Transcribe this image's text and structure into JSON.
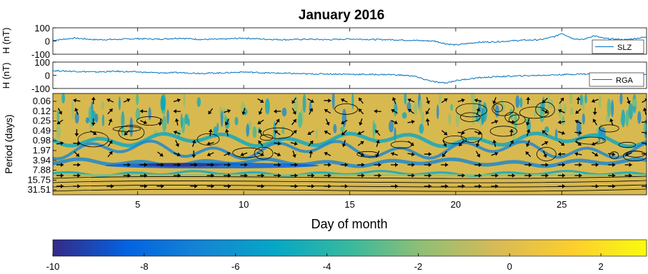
{
  "chart_data": [
    {
      "type": "line",
      "title": "January 2016",
      "ylabel": "H (nT)",
      "ylim": [
        -100,
        100
      ],
      "yticks": [
        100,
        0,
        -100
      ],
      "xlim": [
        1,
        29
      ],
      "grid": false,
      "legend_position": "right",
      "series": [
        {
          "name": "SLZ",
          "x": [
            1,
            2,
            3,
            4,
            5,
            6,
            7,
            8,
            9,
            10,
            11,
            12,
            13,
            14,
            15,
            16,
            17,
            18,
            19,
            19.5,
            20,
            21,
            22,
            23,
            24,
            24.7,
            25,
            25.5,
            26,
            26.5,
            27,
            28,
            29
          ],
          "values": [
            5,
            22,
            10,
            12,
            18,
            14,
            22,
            12,
            14,
            22,
            14,
            10,
            14,
            10,
            16,
            12,
            10,
            5,
            0,
            -20,
            -30,
            -10,
            -5,
            5,
            10,
            35,
            60,
            20,
            10,
            40,
            20,
            10,
            30
          ]
        }
      ],
      "color": "#0072BD"
    },
    {
      "type": "line",
      "ylabel": "H (nT)",
      "ylim": [
        -100,
        100
      ],
      "yticks": [
        100,
        0,
        -100
      ],
      "xlim": [
        1,
        29
      ],
      "grid": false,
      "legend_position": "right",
      "series": [
        {
          "name": "RGA",
          "x": [
            1,
            2,
            3,
            4,
            5,
            6,
            7,
            8,
            9,
            10,
            11,
            12,
            13,
            14,
            15,
            16,
            17,
            18,
            18.5,
            19,
            19.5,
            20,
            21,
            22,
            23,
            24,
            25,
            26,
            27,
            28,
            29
          ],
          "values": [
            35,
            30,
            25,
            30,
            25,
            18,
            20,
            15,
            18,
            25,
            18,
            15,
            10,
            10,
            8,
            6,
            5,
            -5,
            -30,
            -50,
            -60,
            -40,
            -20,
            -10,
            -5,
            0,
            5,
            10,
            5,
            5,
            5
          ]
        }
      ],
      "color": "#0072BD"
    },
    {
      "type": "heatmap",
      "xlabel": "Day of month",
      "ylabel": "Period (days)",
      "xlim": [
        1,
        29
      ],
      "xticks": [
        5,
        10,
        15,
        20,
        25
      ],
      "yticks": [
        "0.06",
        "0.12",
        "0.25",
        "0.49",
        "0.98",
        "1.97",
        "3.94",
        "7.88",
        "15.75",
        "31.51"
      ],
      "colorbar_ticks": [
        -10,
        -8,
        -6,
        -4,
        -2,
        0,
        2
      ],
      "colorbar_range": [
        -10,
        3
      ],
      "colormap": "parula"
    }
  ],
  "palette": {
    "parula": [
      "#352a87",
      "#0363e1",
      "#1485d4",
      "#06a7c6",
      "#38b99e",
      "#92bf73",
      "#d9ba56",
      "#fcce2e",
      "#f9fb0e"
    ],
    "line": "#0072BD",
    "axis": "#000000"
  }
}
